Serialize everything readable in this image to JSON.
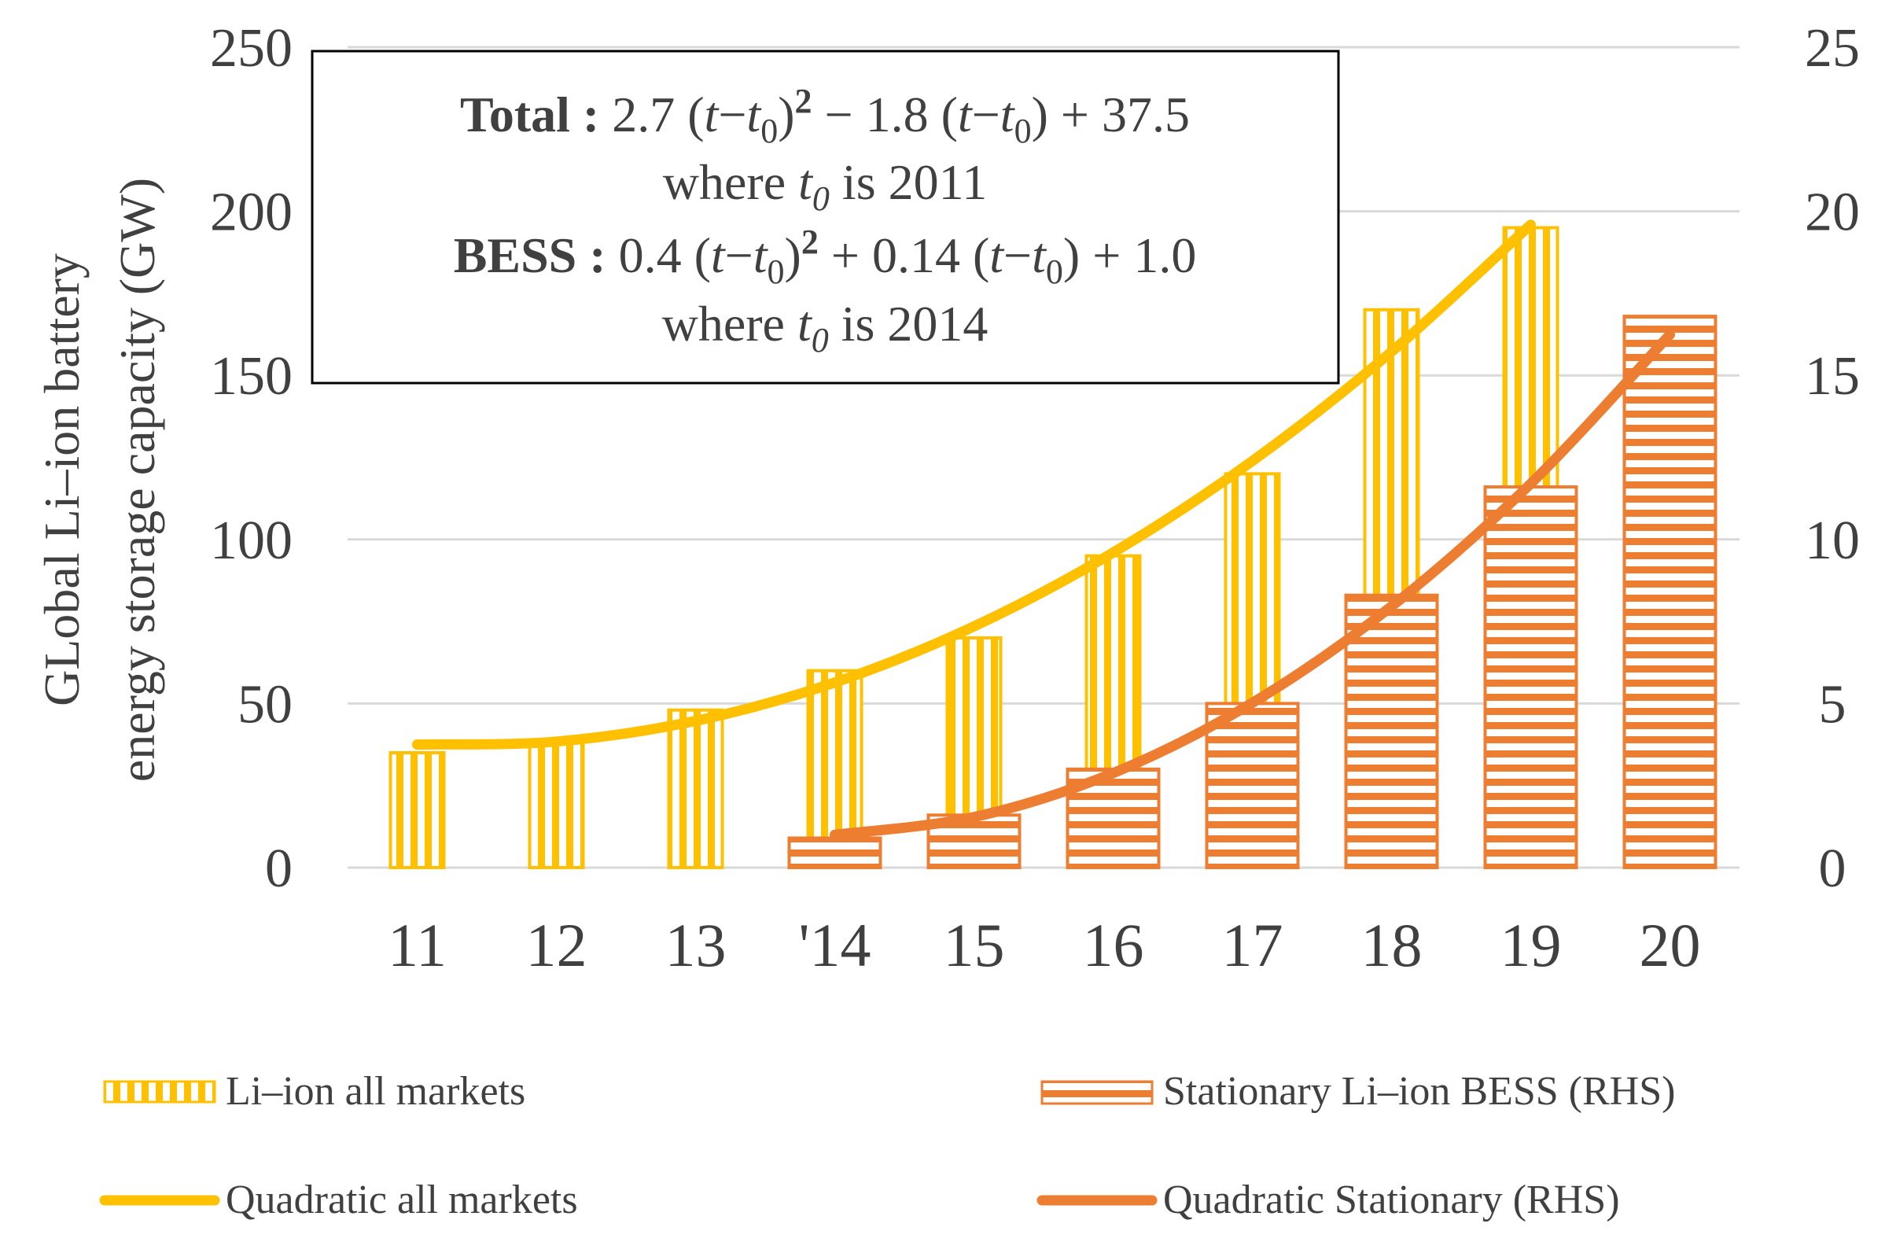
{
  "chart_data": {
    "type": "bar",
    "categories": [
      "11",
      "12",
      "13",
      "'14",
      "15",
      "16",
      "17",
      "18",
      "19",
      "20"
    ],
    "y_left": {
      "label_line1": "GLobal Li–ion battery",
      "label_line2": "energy storage capacity (GW)",
      "ticks": [
        0,
        50,
        100,
        150,
        200,
        250
      ],
      "range": [
        0,
        250
      ]
    },
    "y_right": {
      "ticks": [
        0,
        5,
        10,
        15,
        20,
        25
      ],
      "range": [
        0,
        25
      ]
    },
    "series": [
      {
        "name": "Li–ion all markets",
        "type": "bar",
        "axis": "left",
        "color": "#FFC000",
        "values": [
          35,
          38,
          48,
          60,
          70,
          95,
          120,
          170,
          195,
          null
        ]
      },
      {
        "name": "Stationary Li–ion BESS (RHS)",
        "type": "bar",
        "axis": "right",
        "color": "#ED7D31",
        "values": [
          null,
          null,
          null,
          0.9,
          1.6,
          3.0,
          5.0,
          8.3,
          11.6,
          16.8
        ]
      },
      {
        "name": "Quadratic all markets",
        "type": "line",
        "axis": "left",
        "color": "#FFC000",
        "values": [
          37.5,
          38.4,
          44.7,
          56.4,
          73.5,
          96.0,
          123.9,
          157.2,
          195.9,
          null
        ]
      },
      {
        "name": "Quadratic Stationary (RHS)",
        "type": "line",
        "axis": "right",
        "color": "#ED7D31",
        "values": [
          null,
          null,
          null,
          1.0,
          1.54,
          2.88,
          5.02,
          7.96,
          11.7,
          16.24
        ]
      }
    ],
    "annotation": {
      "total_label": "Total :",
      "total_a": "2.7 (",
      "total_t": "t",
      "total_minus": "−",
      "total_t0": "t",
      "total_sub": "0",
      "total_sq": ")",
      "total_sup": "2",
      "total_rest_a": " − 1.8 (",
      "total_rest_t": "t",
      "total_rest_minus": "−",
      "total_rest_t0": "t",
      "total_rest_sub": "0",
      "total_rest_b": ") + 37.5",
      "total_where": "where ",
      "total_where_t": "t",
      "total_where_sub": "0",
      "total_where_year": " is 2011",
      "bess_label": "BESS :",
      "bess_a": "0.4 (",
      "bess_t": "t",
      "bess_minus": "−",
      "bess_t0": "t",
      "bess_sub": "0",
      "bess_sq": ")",
      "bess_sup": "2",
      "bess_rest_a": " + 0.14 (",
      "bess_rest_t": "t",
      "bess_rest_minus": "−",
      "bess_rest_t0": "t",
      "bess_rest_sub": "0",
      "bess_rest_b": ") + 1.0",
      "bess_where": "where ",
      "bess_where_t": "t",
      "bess_where_sub": "0",
      "bess_where_year": " is 2014"
    },
    "grid": true,
    "legend_position": "bottom"
  }
}
